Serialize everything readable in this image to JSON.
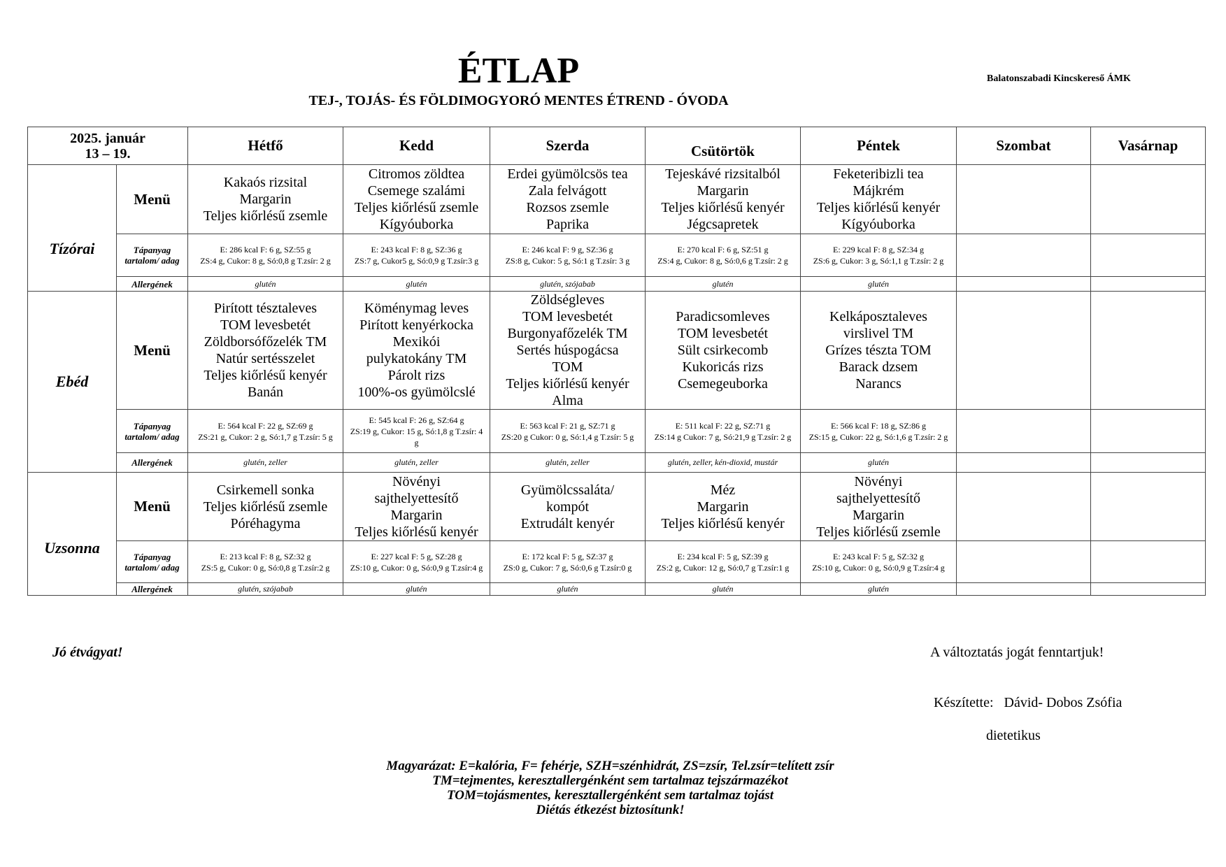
{
  "header": {
    "title": "ÉTLAP",
    "subtitle": "TEJ-, TOJÁS- ÉS FÖLDIMOGYORÓ MENTES ÉTREND - ÓVODA",
    "organization": "Balatonszabadi Kincskereső ÁMK"
  },
  "table": {
    "date_line1": "2025. január",
    "date_line2": "13 – 19.",
    "days": [
      "Hétfő",
      "Kedd",
      "Szerda",
      "Csütörtök",
      "Péntek",
      "Szombat",
      "Vasárnap"
    ],
    "row_labels": {
      "menu": "Menü",
      "nutrition": "Tápanyag tartalom/ adag",
      "allergens": "Allergének"
    },
    "meals": [
      {
        "name": "Tízórai",
        "menu": [
          [
            "Kakaós rizsital",
            "Margarin",
            "Teljes kiőrlésű zsemle"
          ],
          [
            "Citromos zöldtea",
            "Csemege szalámi",
            "Teljes kiőrlésű zsemle",
            "Kígyóuborka"
          ],
          [
            "Erdei gyümölcsös tea",
            "Zala felvágott",
            "Rozsos zsemle",
            "Paprika"
          ],
          [
            "Tejeskávé rizsitalból",
            "Margarin",
            "Teljes kiőrlésű kenyér",
            "Jégcsapretek"
          ],
          [
            "Feketeribizli tea",
            "Májkrém",
            "Teljes kiőrlésű kenyér",
            "Kígyóuborka"
          ],
          [],
          []
        ],
        "nutrition": [
          [
            "E: 286 kcal F: 6 g, SZ:55 g",
            "ZS:4 g, Cukor: 8 g, Só:0,8 g T.zsír: 2 g"
          ],
          [
            "E: 243 kcal F: 8 g, SZ:36 g",
            "ZS:7 g, Cukor5 g, Só:0,9 g T.zsír:3 g"
          ],
          [
            "E: 246 kcal F: 9 g, SZ:36 g",
            "ZS:8 g, Cukor: 5 g, Só:1 g T.zsír: 3 g"
          ],
          [
            "E: 270 kcal F: 6 g, SZ:51 g",
            "ZS:4 g, Cukor: 8 g, Só:0,6 g T.zsír: 2 g"
          ],
          [
            "E: 229 kcal F: 8 g, SZ:34 g",
            "ZS:6 g, Cukor: 3 g, Só:1,1 g T.zsír: 2 g"
          ],
          [],
          []
        ],
        "allergens": [
          "glutén",
          "glutén",
          "glutén, szójabab",
          "glutén",
          "glutén",
          "",
          ""
        ]
      },
      {
        "name": "Ebéd",
        "menu": [
          [
            "Pirított tésztaleves",
            "TOM levesbetét",
            "Zöldborsófőzelék TM",
            "Natúr sertésszelet",
            "Teljes kiőrlésű kenyér",
            "Banán"
          ],
          [
            "Köménymag leves",
            "Pirított kenyérkocka",
            "Mexikói",
            "pulykatokány TM",
            "Párolt rizs",
            "100%-os gyümölcslé"
          ],
          [
            "Zöldségleves",
            "TOM levesbetét",
            "Burgonyafőzelék TM",
            "Sertés húspogácsa",
            "TOM",
            "Teljes kiőrlésű kenyér",
            "Alma"
          ],
          [
            "Paradicsomleves",
            "TOM levesbetét",
            "Sült csirkecomb",
            "Kukoricás rizs",
            "Csemegeuborka"
          ],
          [
            "Kelkáposztaleves",
            "virslivel TM",
            "Grízes tészta TOM",
            "Barack dzsem",
            "Narancs"
          ],
          [],
          []
        ],
        "nutrition": [
          [
            "E: 564 kcal F: 22 g, SZ:69 g",
            "ZS:21 g, Cukor: 2 g, Só:1,7 g T.zsír: 5 g"
          ],
          [
            "E: 545 kcal F: 26 g, SZ:64 g",
            "ZS:19 g, Cukor: 15 g, Só:1,8 g T.zsír: 4 g"
          ],
          [
            "E: 563 kcal F: 21 g, SZ:71 g",
            "ZS:20 g Cukor: 0 g, Só:1,4 g T.zsír: 5 g"
          ],
          [
            "E: 511 kcal F: 22 g, SZ:71 g",
            "ZS:14 g Cukor: 7 g, Só:21,9 g T.zsír: 2 g"
          ],
          [
            "E: 566 kcal F: 18 g, SZ:86 g",
            "ZS:15 g, Cukor: 22 g, Só:1,6 g T.zsír: 2 g"
          ],
          [],
          []
        ],
        "allergens": [
          "glutén, zeller",
          "glutén, zeller",
          "glutén, zeller",
          "glutén, zeller, kén-dioxid, mustár",
          "glutén",
          "",
          ""
        ]
      },
      {
        "name": "Uzsonna",
        "menu": [
          [
            "Csirkemell sonka",
            "Teljes kiőrlésű zsemle",
            "Póréhagyma"
          ],
          [
            "Növényi",
            "sajthelyettesítő",
            "Margarin",
            "Teljes kiőrlésű kenyér"
          ],
          [
            "Gyümölcssaláta/",
            "kompót",
            "Extrudált kenyér"
          ],
          [
            "Méz",
            "Margarin",
            "Teljes kiőrlésű kenyér"
          ],
          [
            "Növényi",
            "sajthelyettesítő",
            "Margarin",
            "Teljes kiőrlésű zsemle"
          ],
          [],
          []
        ],
        "nutrition": [
          [
            "E: 213 kcal F: 8 g, SZ:32 g",
            "ZS:5 g, Cukor: 0 g, Só:0,8 g T.zsír:2 g"
          ],
          [
            "E: 227 kcal F: 5 g, SZ:28 g",
            "ZS:10 g, Cukor: 0 g, Só:0,9 g T.zsír:4 g"
          ],
          [
            "E: 172 kcal F: 5 g, SZ:37 g",
            "ZS:0 g, Cukor: 7 g, Só:0,6 g T.zsír:0 g"
          ],
          [
            "E: 234 kcal F: 5 g, SZ:39 g",
            "ZS:2 g, Cukor: 12 g, Só:0,7 g T.zsír:1 g"
          ],
          [
            "E: 243 kcal F: 5 g, SZ:32 g",
            "ZS:10 g, Cukor: 0 g, Só:0,9 g T.zsír:4 g"
          ],
          [],
          []
        ],
        "allergens": [
          "glutén, szójabab",
          "glutén",
          "glutén",
          "glutén",
          "glutén",
          "",
          ""
        ]
      }
    ]
  },
  "footer": {
    "greeting": "Jó étvágyat!",
    "disclaimer": "A változtatás jogát fenntartjuk!",
    "author": "Készítette:   Dávid- Dobos Zsófia",
    "author_title": "dietetikus",
    "explanation": [
      "Magyarázat: E=kalória, F= fehérje, SZH=szénhidrát, ZS=zsír, Tel.zsír=telített zsír",
      "TM=tejmentes, keresztallergénként sem tartalmaz tejszármazékot",
      "TOM=tojásmentes, keresztallergénként sem tartalmaz tojást",
      "Diétás étkezést biztosítunk!"
    ]
  }
}
